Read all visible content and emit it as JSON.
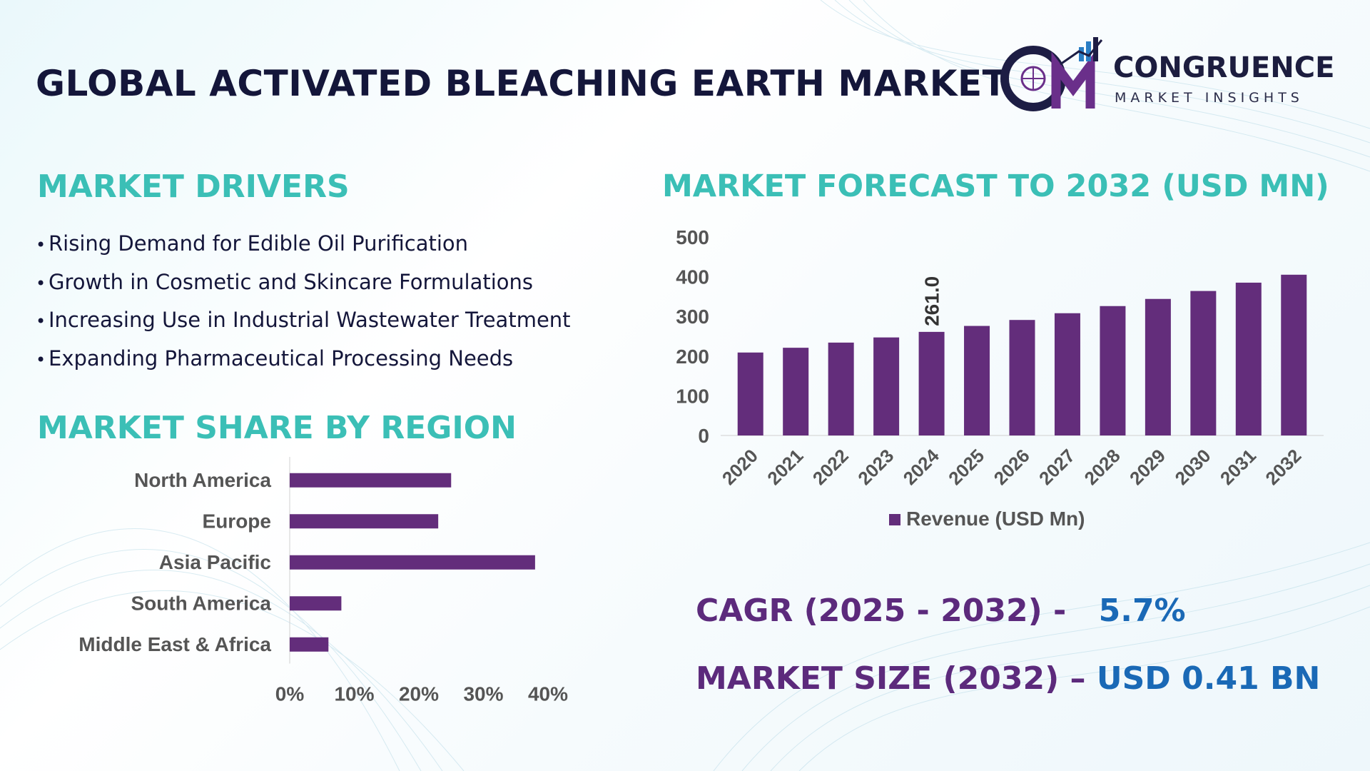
{
  "header": {
    "title": "GLOBAL ACTIVATED BLEACHING EARTH MARKET",
    "logo_name": "CONGRUENCE",
    "logo_sub": "MARKET INSIGHTS",
    "logo_mark": "CM"
  },
  "drivers": {
    "title": "MARKET DRIVERS",
    "items": [
      "Rising Demand for Edible Oil Purification",
      "Growth in Cosmetic and Skincare Formulations",
      "Increasing Use in Industrial Wastewater Treatment",
      "Expanding Pharmaceutical Processing Needs"
    ]
  },
  "share": {
    "title": "MARKET SHARE BY REGION"
  },
  "forecast": {
    "title": "MARKET FORECAST TO 2032 (USD MN)"
  },
  "kpis": {
    "cagr_label": "CAGR (2025 - 2032) -",
    "cagr_value": "5.7%",
    "size_label": "MARKET SIZE (2032) –",
    "size_value": "USD 0.41 BN"
  },
  "colors": {
    "bar": "#632d7b",
    "teal": "#3bbfb6",
    "purple_text": "#5c2a7c",
    "blue_text": "#1a69b6",
    "navy": "#14163a"
  },
  "chart_data": [
    {
      "type": "bar",
      "orientation": "horizontal",
      "title": "MARKET SHARE BY REGION",
      "categories": [
        "North America",
        "Europe",
        "Asia Pacific",
        "South America",
        "Middle East & Africa"
      ],
      "values": [
        25,
        23,
        38,
        8,
        6
      ],
      "xlim": [
        0,
        40
      ],
      "ticks": [
        "0%",
        "10%",
        "20%",
        "30%",
        "40%"
      ],
      "grid": false
    },
    {
      "type": "bar",
      "orientation": "vertical",
      "title": "MARKET FORECAST TO 2032 (USD MN)",
      "categories": [
        "2020",
        "2021",
        "2022",
        "2023",
        "2024",
        "2025",
        "2026",
        "2027",
        "2028",
        "2029",
        "2030",
        "2031",
        "2032"
      ],
      "series": [
        {
          "name": "Revenue (USD Mn)",
          "values": [
            209,
            221,
            234,
            247,
            261,
            276,
            291,
            308,
            326,
            344,
            364,
            385,
            405
          ]
        }
      ],
      "data_labels": [
        {
          "index": 4,
          "text": "261.0"
        }
      ],
      "ylim": [
        0,
        500
      ],
      "yticks": [
        "0",
        "100",
        "200",
        "300",
        "400",
        "500"
      ],
      "legend": "bottom",
      "grid": false
    }
  ]
}
